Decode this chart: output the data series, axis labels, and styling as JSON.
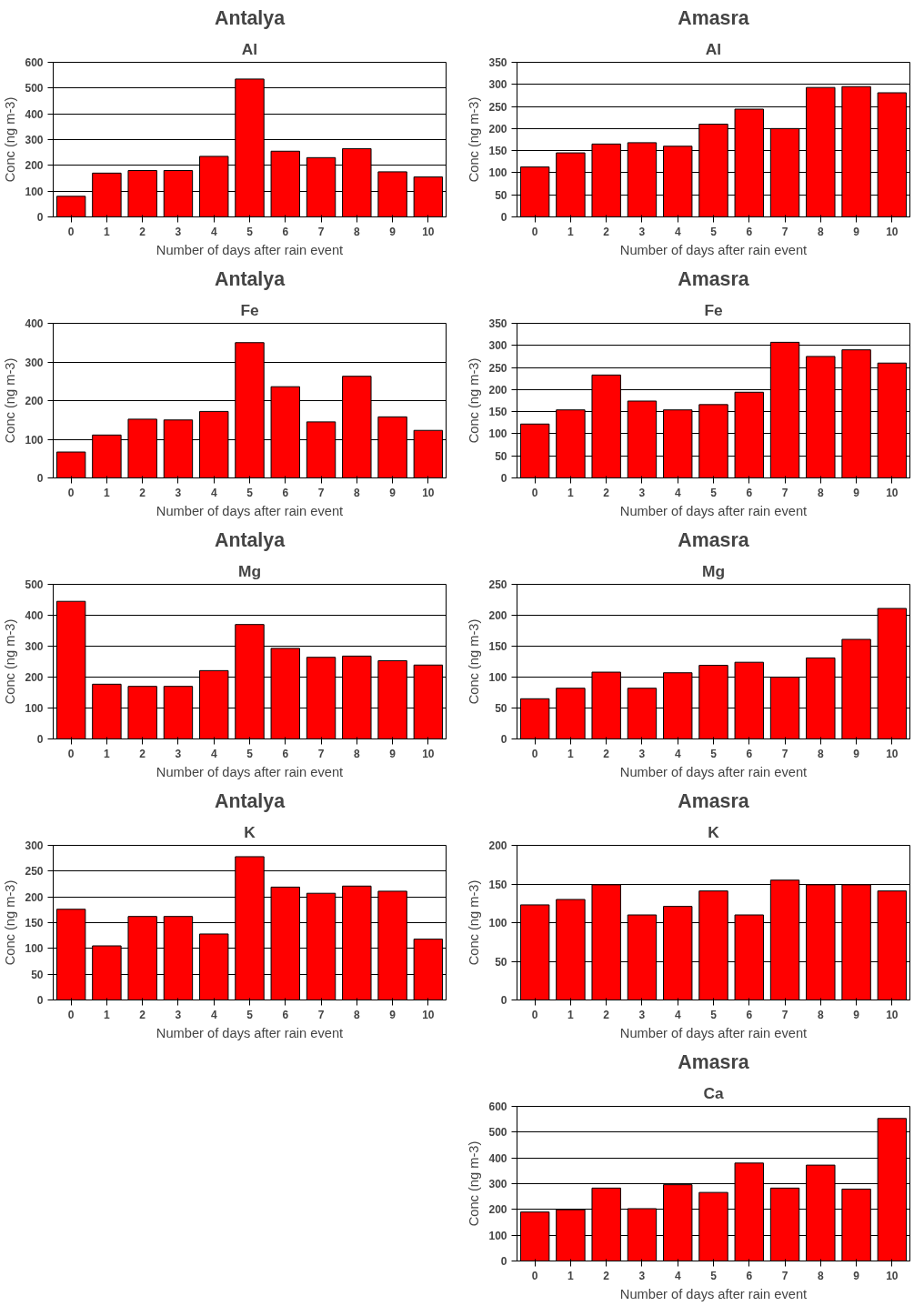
{
  "chart_data": [
    {
      "type": "bar",
      "title": "Antalya",
      "subtitle": "Al",
      "xlabel": "Number of days after rain event",
      "ylabel": "Conc (ng m-3)",
      "categories": [
        "0",
        "1",
        "2",
        "3",
        "4",
        "5",
        "6",
        "7",
        "8",
        "9",
        "10"
      ],
      "values": [
        80,
        170,
        180,
        180,
        235,
        535,
        255,
        230,
        265,
        175,
        155
      ],
      "color": "#ff0000",
      "ylim": [
        0,
        600
      ],
      "yticks": [
        0,
        100,
        200,
        300,
        400,
        500,
        600
      ],
      "grid": "y"
    },
    {
      "type": "bar",
      "title": "Antalya",
      "subtitle": "Fe",
      "xlabel": "Number of days after rain event",
      "ylabel": "Conc (ng m-3)",
      "categories": [
        "0",
        "1",
        "2",
        "3",
        "4",
        "5",
        "6",
        "7",
        "8",
        "9",
        "10"
      ],
      "values": [
        67,
        111,
        152,
        150,
        172,
        350,
        236,
        145,
        263,
        158,
        123
      ],
      "color": "#ff0000",
      "ylim": [
        0,
        400
      ],
      "yticks": [
        0,
        100,
        200,
        300,
        400
      ],
      "grid": "y"
    },
    {
      "type": "bar",
      "title": "Antalya",
      "subtitle": "Mg",
      "xlabel": "Number of days after rain event",
      "ylabel": "Conc (ng m-3)",
      "categories": [
        "0",
        "1",
        "2",
        "3",
        "4",
        "5",
        "6",
        "7",
        "8",
        "9",
        "10"
      ],
      "values": [
        445,
        177,
        170,
        170,
        221,
        370,
        293,
        264,
        268,
        253,
        239
      ],
      "color": "#ff0000",
      "ylim": [
        0,
        500
      ],
      "yticks": [
        0,
        100,
        200,
        300,
        400,
        500
      ],
      "grid": "y"
    },
    {
      "type": "bar",
      "title": "Antalya",
      "subtitle": "K",
      "xlabel": "Number of days after rain event",
      "ylabel": "Conc (ng m-3)",
      "categories": [
        "0",
        "1",
        "2",
        "3",
        "4",
        "5",
        "6",
        "7",
        "8",
        "9",
        "10"
      ],
      "values": [
        176,
        105,
        162,
        162,
        128,
        278,
        219,
        207,
        221,
        211,
        118
      ],
      "color": "#ff0000",
      "ylim": [
        0,
        300
      ],
      "yticks": [
        0,
        50,
        100,
        150,
        200,
        250,
        300
      ],
      "grid": "y"
    },
    {
      "type": "bar",
      "title": "Amasra",
      "subtitle": "Al",
      "xlabel": "Number of days after rain event",
      "ylabel": "Conc (ng m-3)",
      "categories": [
        "0",
        "1",
        "2",
        "3",
        "4",
        "5",
        "6",
        "7",
        "8",
        "9",
        "10"
      ],
      "values": [
        113,
        145,
        165,
        168,
        160,
        210,
        244,
        200,
        293,
        295,
        281
      ],
      "color": "#ff0000",
      "ylim": [
        0,
        350
      ],
      "yticks": [
        0,
        50,
        100,
        150,
        200,
        250,
        300,
        350
      ],
      "grid": "y"
    },
    {
      "type": "bar",
      "title": "Amasra",
      "subtitle": "Fe",
      "xlabel": "Number of days after rain event",
      "ylabel": "Conc (ng m-3)",
      "categories": [
        "0",
        "1",
        "2",
        "3",
        "4",
        "5",
        "6",
        "7",
        "8",
        "9",
        "10"
      ],
      "values": [
        122,
        154,
        233,
        174,
        154,
        166,
        194,
        307,
        275,
        290,
        260
      ],
      "color": "#ff0000",
      "ylim": [
        0,
        350
      ],
      "yticks": [
        0,
        50,
        100,
        150,
        200,
        250,
        300,
        350
      ],
      "grid": "y"
    },
    {
      "type": "bar",
      "title": "Amasra",
      "subtitle": "Mg",
      "xlabel": "Number of days after rain event",
      "ylabel": "Conc (ng m-3)",
      "categories": [
        "0",
        "1",
        "2",
        "3",
        "4",
        "5",
        "6",
        "7",
        "8",
        "9",
        "10"
      ],
      "values": [
        65,
        82,
        108,
        82,
        107,
        119,
        124,
        100,
        131,
        161,
        211
      ],
      "color": "#ff0000",
      "ylim": [
        0,
        250
      ],
      "yticks": [
        0,
        50,
        100,
        150,
        200,
        250
      ],
      "grid": "y"
    },
    {
      "type": "bar",
      "title": "Amasra",
      "subtitle": "K",
      "xlabel": "Number of days after rain event",
      "ylabel": "Conc (ng m-3)",
      "categories": [
        "0",
        "1",
        "2",
        "3",
        "4",
        "5",
        "6",
        "7",
        "8",
        "9",
        "10"
      ],
      "values": [
        123,
        130,
        149,
        110,
        121,
        141,
        110,
        155,
        149,
        149,
        141
      ],
      "color": "#ff0000",
      "ylim": [
        0,
        200
      ],
      "yticks": [
        0,
        50,
        100,
        150,
        200
      ],
      "grid": "y"
    },
    {
      "type": "bar",
      "title": "Amasra",
      "subtitle": "Ca",
      "xlabel": "Number of days after rain event",
      "ylabel": "Conc (ng m-3)",
      "categories": [
        "0",
        "1",
        "2",
        "3",
        "4",
        "5",
        "6",
        "7",
        "8",
        "9",
        "10"
      ],
      "values": [
        190,
        199,
        283,
        203,
        296,
        266,
        380,
        283,
        372,
        279,
        553
      ],
      "color": "#ff0000",
      "ylim": [
        0,
        600
      ],
      "yticks": [
        0,
        100,
        200,
        300,
        400,
        500,
        600
      ],
      "grid": "y"
    }
  ]
}
